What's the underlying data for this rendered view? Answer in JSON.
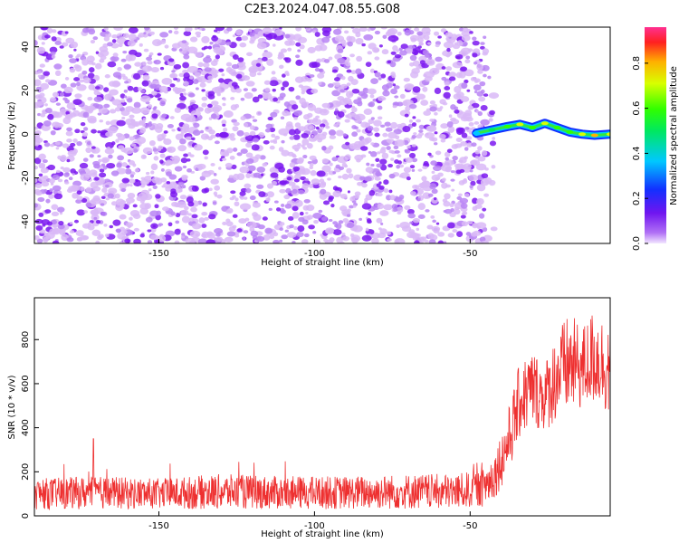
{
  "title": "C2E3.2024.047.08.55.G08",
  "colors": {
    "speckle_light": "#d9b8f7",
    "speckle_dark": "#7b17f0",
    "snr_line": "#ee3030"
  },
  "chart_data": [
    {
      "type": "heatmap",
      "title": "C2E3.2024.047.08.55.G08",
      "xlabel": "Height of straight line (km)",
      "ylabel": "Frequency (Hz)",
      "xlim": [
        -190,
        -5
      ],
      "ylim": [
        -50,
        49
      ],
      "x_ticks": [
        -150,
        -100,
        -50
      ],
      "y_ticks": [
        -40,
        -20,
        0,
        20,
        40
      ],
      "colorbar": {
        "label": "Normalized spectral amplitude",
        "range": [
          0,
          0.96
        ],
        "ticks": [
          "0.0",
          "0.2",
          "0.4",
          "0.6",
          "0.8"
        ],
        "colormap": "rainbow (violet → blue → cyan → green → yellow → red)"
      },
      "noise_region": {
        "x_range": [
          -190,
          -45
        ],
        "typical_amplitude": 0.05
      },
      "signal_track": {
        "x": [
          -48,
          -43,
          -38,
          -34,
          -30,
          -26,
          -22,
          -18,
          -14,
          -10,
          -5
        ],
        "frequency": [
          0.5,
          2.0,
          3.5,
          4.5,
          3.0,
          5.0,
          3.0,
          1.0,
          0.0,
          -0.5,
          0.0
        ],
        "amplitude": [
          0.3,
          0.55,
          0.7,
          0.8,
          0.75,
          0.8,
          0.75,
          0.7,
          0.8,
          0.95,
          0.85
        ]
      }
    },
    {
      "type": "line",
      "xlabel": "Height of straight line (km)",
      "ylabel": "SNR (10 * v/v)",
      "xlim": [
        -190,
        -5
      ],
      "ylim": [
        0,
        990
      ],
      "x_ticks": [
        -150,
        -100,
        -50
      ],
      "y_ticks": [
        0,
        200,
        400,
        600,
        800
      ],
      "series": [
        {
          "x": [
            -190,
            -170,
            -150,
            -130,
            -110,
            -90,
            -70,
            -55,
            -46,
            -42,
            -38,
            -34,
            -30,
            -26,
            -22,
            -18,
            -14,
            -10,
            -7,
            -5
          ],
          "y_low": [
            30,
            30,
            30,
            30,
            30,
            30,
            30,
            30,
            40,
            80,
            180,
            350,
            400,
            380,
            430,
            460,
            480,
            500,
            480,
            430
          ],
          "y_high": [
            170,
            180,
            170,
            190,
            180,
            180,
            190,
            190,
            210,
            300,
            470,
            700,
            760,
            700,
            850,
            920,
            860,
            950,
            900,
            880
          ],
          "spike_max": 350
        }
      ]
    }
  ]
}
